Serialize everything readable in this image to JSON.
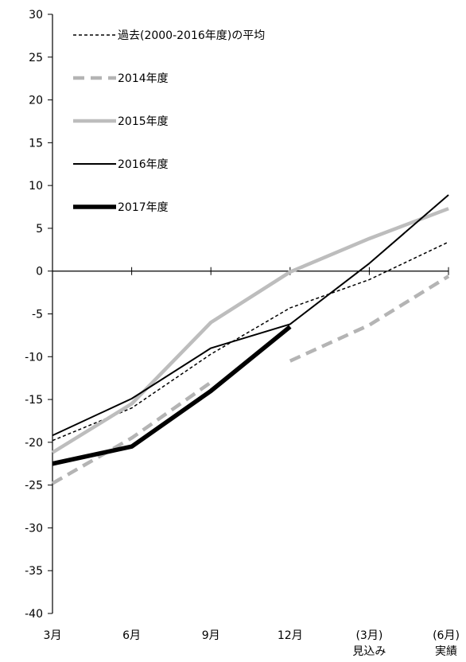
{
  "chart_data": {
    "type": "line",
    "categories": [
      [
        "3月"
      ],
      [
        "6月"
      ],
      [
        "9月"
      ],
      [
        "12月"
      ],
      [
        "(3月)",
        "見込み"
      ],
      [
        "(6月)",
        "実績"
      ]
    ],
    "ylim": [
      -40,
      30
    ],
    "yticks": [
      30,
      25,
      20,
      15,
      10,
      5,
      0,
      -5,
      -10,
      -15,
      -20,
      -25,
      -30,
      -35,
      -40
    ],
    "grid": false,
    "legend": "top-left inside",
    "series": [
      {
        "name": "過去(2000-2016年度)の平均",
        "values": [
          -19.8,
          -16,
          -9.7,
          -4.3,
          -1,
          3.4
        ],
        "color": "#000000",
        "style": "dashed-thin"
      },
      {
        "name": "2014年度",
        "values": [
          -24.8,
          -19.5,
          -13,
          null,
          null,
          null
        ],
        "color": "#b4b4b4",
        "style": "dashed-thick"
      },
      {
        "name": "2014年度-continued",
        "values": [
          null,
          null,
          null,
          -10.5,
          -6.3,
          -0.6
        ],
        "color": "#b4b4b4",
        "style": "dashed-thick"
      },
      {
        "name": "2015年度",
        "values": [
          -21.2,
          -15.5,
          -6,
          -0.1,
          3.8,
          7.3
        ],
        "color": "#bdbdbd",
        "style": "solid-thick"
      },
      {
        "name": "2016年度",
        "values": [
          -19.2,
          -14.9,
          -9,
          -6.2,
          0.9,
          8.9
        ],
        "color": "#000000",
        "style": "solid-thin"
      },
      {
        "name": "2017年度",
        "values": [
          -22.5,
          -20.5,
          -14,
          -6.5,
          null,
          null
        ],
        "color": "#000000",
        "style": "solid-heavy"
      }
    ]
  }
}
